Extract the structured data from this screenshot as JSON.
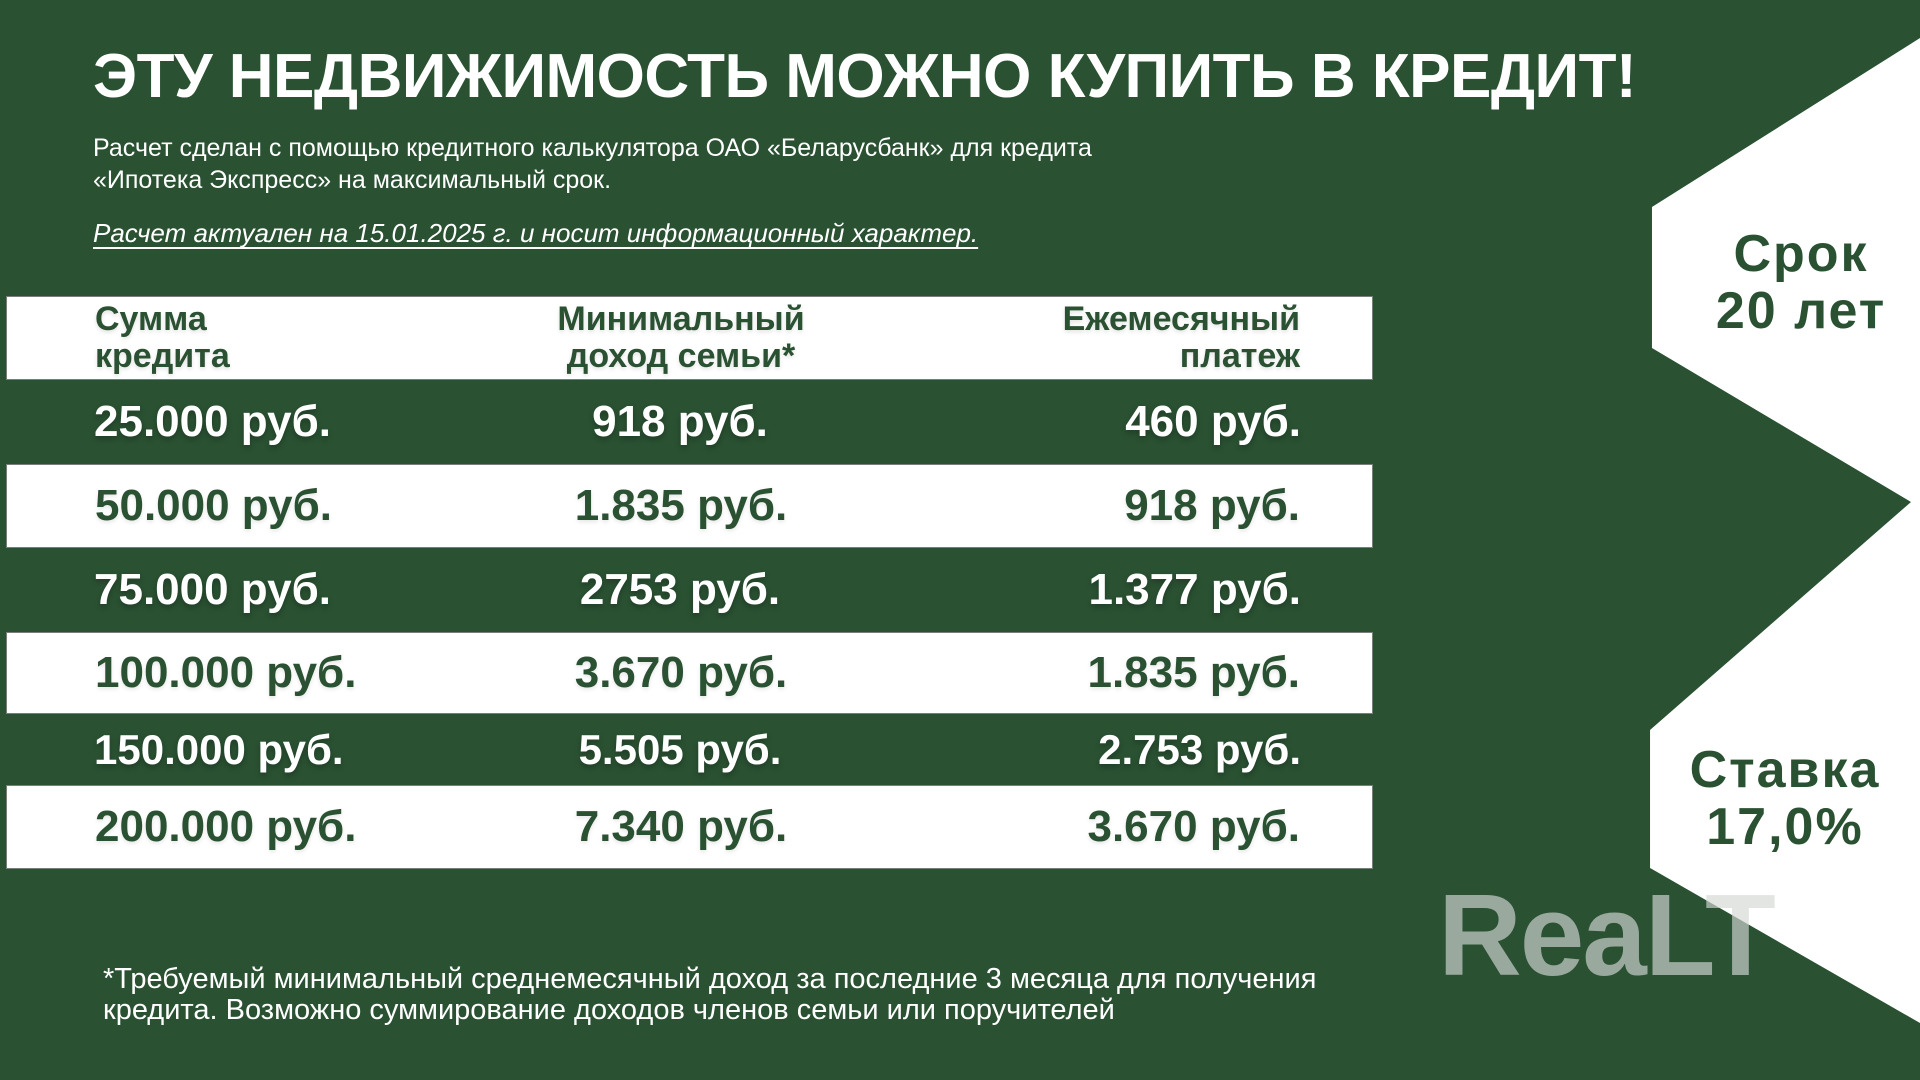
{
  "header": {
    "title": "ЭТУ НЕДВИЖИМОСТЬ МОЖНО КУПИТЬ В КРЕДИТ!",
    "subtitle_line1": "Расчет сделан с помощью кредитного калькулятора ОАО «Беларусбанк» для кредита",
    "subtitle_line2": "«Ипотека Экспресс» на максимальный срок.",
    "validity_note": "Расчет актуален на 15.01.2025 г. и носит информационный характер."
  },
  "table": {
    "header_lines": {
      "col1": [
        "Сумма",
        "кредита"
      ],
      "col2": [
        "Минимальный",
        "доход семьи*"
      ],
      "col3": [
        "Ежемесячный",
        "платеж"
      ]
    }
  },
  "chart_data": {
    "type": "table",
    "title": "ЭТУ НЕДВИЖИМОСТЬ МОЖНО КУПИТЬ В КРЕДИТ!",
    "columns": [
      "Сумма кредита",
      "Минимальный доход семьи*",
      "Ежемесячный платеж"
    ],
    "rows": [
      [
        "25.000 руб.",
        "918 руб.",
        "460 руб."
      ],
      [
        "50.000 руб.",
        "1.835 руб.",
        "918 руб."
      ],
      [
        "75.000 руб.",
        "2753 руб.",
        "1.377 руб."
      ],
      [
        "100.000 руб.",
        "3.670 руб.",
        "1.835 руб."
      ],
      [
        "150.000 руб.",
        "5.505 руб.",
        "2.753 руб."
      ],
      [
        "200.000 руб.",
        "7.340 руб.",
        "3.670 руб."
      ]
    ],
    "annotations": [
      "Срок 20 лет",
      "Ставка 17,0%"
    ],
    "legend_position": "none",
    "grid": false
  },
  "badges": {
    "term": [
      "Срок",
      "20 лет"
    ],
    "rate": [
      "Ставка",
      "17,0%"
    ]
  },
  "footnote": {
    "line1": "*Требуемый минимальный среднемесячный доход за последние 3 месяца для получения",
    "line2": "кредита. Возможно суммирование доходов членов семьи или поручителей"
  },
  "watermark": "ReaLT",
  "colors": {
    "background_green": "#2a5132",
    "text_white": "#ffffff",
    "dark_green_text": "#2a5132",
    "banner_white": "#ffffff",
    "watermark_gray": "#d4d8d4"
  }
}
